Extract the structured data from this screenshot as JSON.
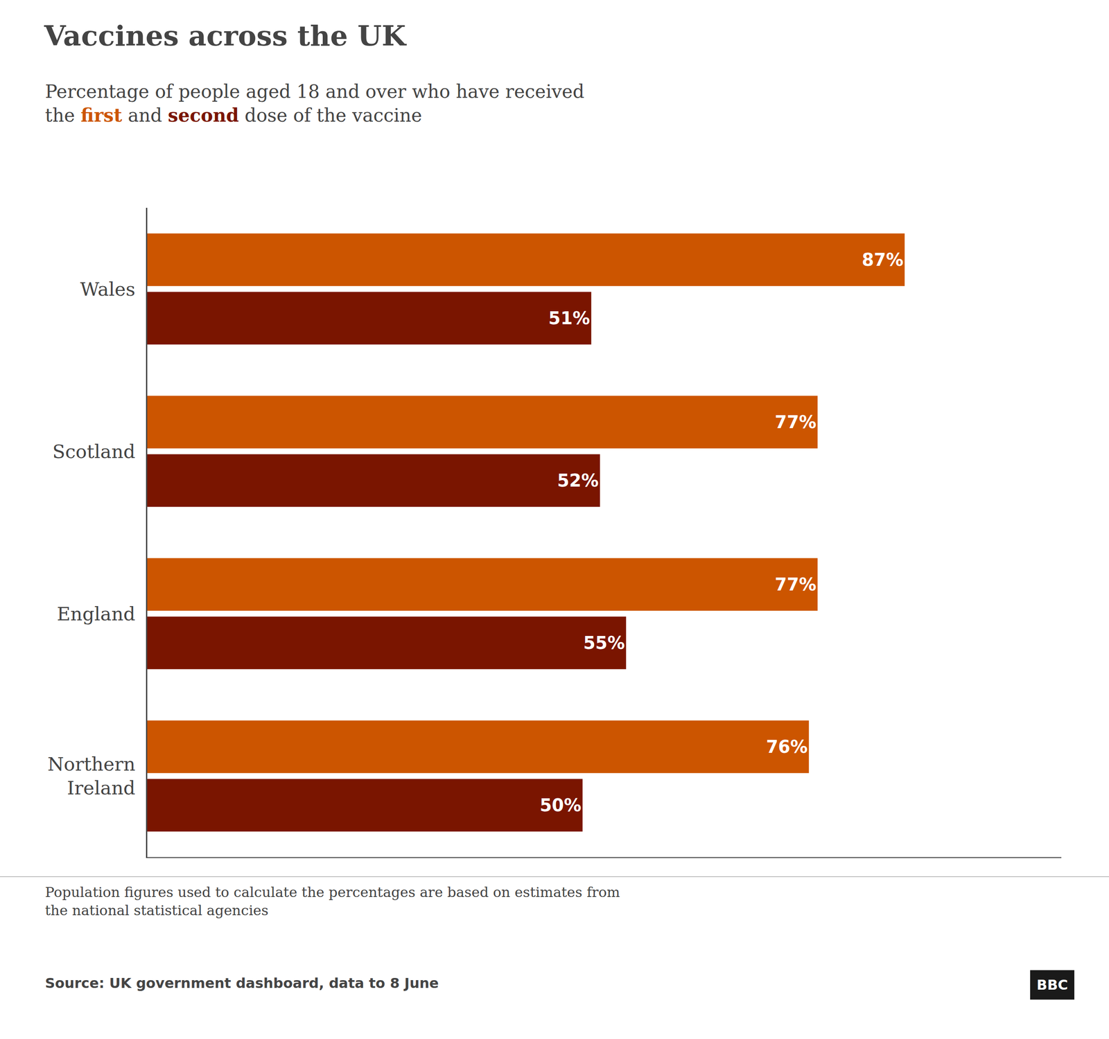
{
  "chart_data": {
    "type": "bar",
    "orientation": "horizontal",
    "title": "Vaccines across the UK",
    "subtitle": [
      [
        {
          "text": "Percentage of people aged 18 and over who have received"
        }
      ],
      [
        {
          "text": "the "
        },
        {
          "text": "first",
          "color": "#cc5500"
        },
        {
          "text": " and "
        },
        {
          "text": "second",
          "color": "#7a1500"
        },
        {
          "text": " dose of the vaccine"
        }
      ]
    ],
    "categories": [
      "Wales",
      "Scotland",
      "England",
      "Northern\nIreland"
    ],
    "series": [
      {
        "name": "first",
        "color": "#cc5500",
        "values": [
          87,
          77,
          77,
          76
        ],
        "value_labels": [
          "87%",
          "77%",
          "77%",
          "76%"
        ]
      },
      {
        "name": "second",
        "color": "#7a1500",
        "values": [
          51,
          52,
          55,
          50
        ],
        "value_labels": [
          "51%",
          "52%",
          "55%",
          "50%"
        ]
      }
    ],
    "xlim": [
      0,
      105
    ],
    "xticks": [],
    "tick_labels": "y",
    "data_labels": true,
    "grid": false,
    "annotations": [
      {
        "text": "Population figures used to calculate the percentages are based on estimates from\nthe national statistical agencies"
      },
      {
        "text": "Source: UK government dashboard, data to 8 June"
      },
      {
        "text": "BBC",
        "color": "#1a1a1a"
      }
    ]
  }
}
